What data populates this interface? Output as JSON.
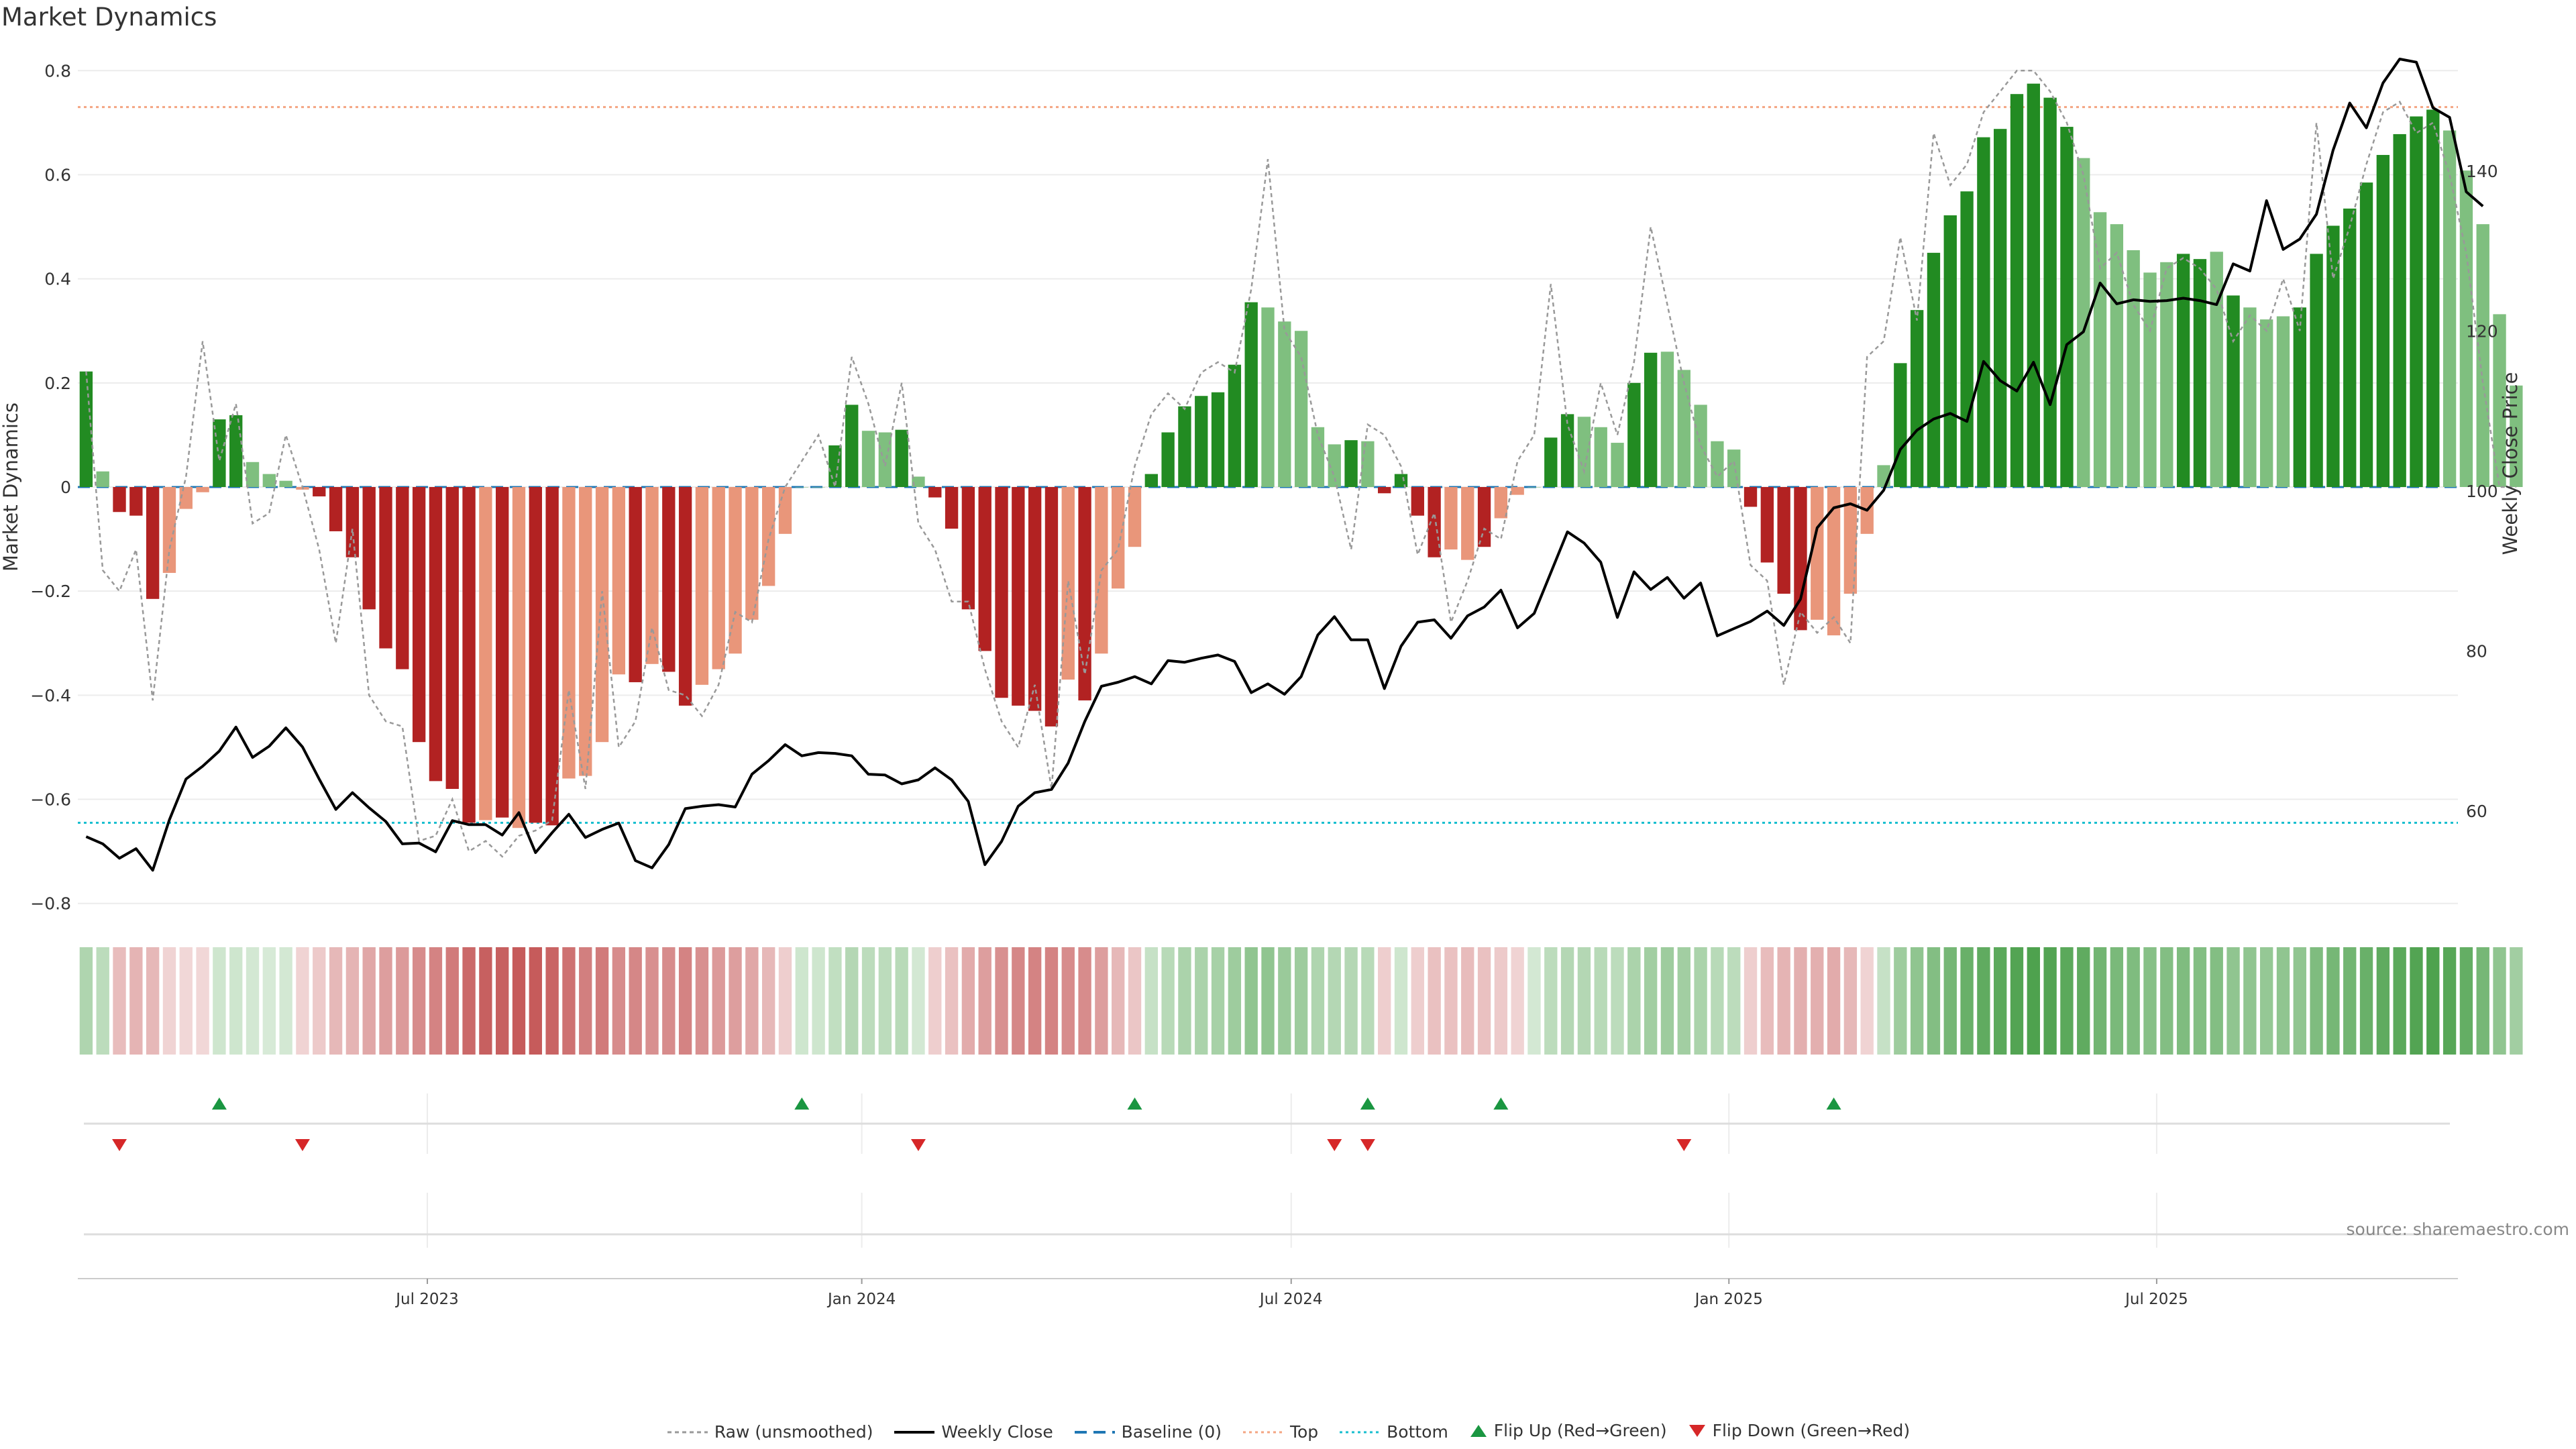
{
  "title": "Market Dynamics",
  "source": "source: sharemaestro.com",
  "colors": {
    "strong_green": "#228B22",
    "light_green": "#7FBF7F",
    "strong_red": "#B22222",
    "light_red": "#E9967A",
    "raw": "#999999",
    "close": "#000000",
    "baseline": "#1F77B4",
    "top": "#F4A582",
    "bottom": "#17BECF",
    "flip_up": "#1A9641",
    "flip_down": "#D62728"
  },
  "chart_data": {
    "type": "bar",
    "title": "Market Dynamics",
    "ylabel": "Market Dynamics",
    "y2label": "Weekly Close Price",
    "ylim": [
      -0.83,
      0.83
    ],
    "y2lim": [
      46.5,
      154.5
    ],
    "yticks": [
      0.8,
      0.6,
      0.4,
      0.2,
      0,
      -0.2,
      -0.4,
      -0.6,
      -0.8
    ],
    "y2ticks": [
      140,
      120,
      100,
      80,
      60
    ],
    "xticks": [
      "Jul 2023",
      "Jan 2024",
      "Jul 2024",
      "Jan 2025",
      "Jul 2025"
    ],
    "xtick_index": [
      21.0,
      47.1,
      72.9,
      99.2,
      124.9
    ],
    "x_count": 143,
    "top_level": 0.73,
    "bottom_level": -0.645,
    "baseline_level": 0,
    "dynamics": [
      0.222,
      0.03,
      -0.048,
      -0.055,
      -0.215,
      -0.165,
      -0.042,
      -0.01,
      0.13,
      0.138,
      0.048,
      0.025,
      0.012,
      -0.005,
      -0.018,
      -0.085,
      -0.135,
      -0.235,
      -0.31,
      -0.35,
      -0.49,
      -0.565,
      -0.58,
      -0.645,
      -0.64,
      -0.635,
      -0.655,
      -0.645,
      -0.65,
      -0.56,
      -0.555,
      -0.49,
      -0.36,
      -0.375,
      -0.34,
      -0.355,
      -0.42,
      -0.38,
      -0.35,
      -0.32,
      -0.255,
      -0.19,
      -0.09,
      0.0,
      0.0,
      0.08,
      0.158,
      0.108,
      0.105,
      0.11,
      0.02,
      -0.02,
      -0.08,
      -0.235,
      -0.315,
      -0.405,
      -0.42,
      -0.43,
      -0.46,
      -0.37,
      -0.41,
      -0.32,
      -0.195,
      -0.115,
      0.025,
      0.105,
      0.155,
      0.175,
      0.182,
      0.235,
      0.355,
      0.345,
      0.318,
      0.3,
      0.115,
      0.082,
      0.09,
      0.088,
      -0.012,
      0.025,
      -0.055,
      -0.135,
      -0.12,
      -0.14,
      -0.115,
      -0.06,
      -0.015,
      0.0,
      0.095,
      0.14,
      0.135,
      0.115,
      0.085,
      0.2,
      0.258,
      0.26,
      0.225,
      0.158,
      0.088,
      0.072,
      -0.038,
      -0.145,
      -0.205,
      -0.275,
      -0.255,
      -0.285,
      -0.205,
      -0.09,
      0.042,
      0.238,
      0.34,
      0.45,
      0.522,
      0.568,
      0.672,
      0.688,
      0.755,
      0.775,
      0.748,
      0.692,
      0.632,
      0.528,
      0.505,
      0.455,
      0.412,
      0.432,
      0.448,
      0.438,
      0.452,
      0.368,
      0.345,
      0.322,
      0.328,
      0.345,
      0.448,
      0.502,
      0.535,
      0.585,
      0.638,
      0.678,
      0.712,
      0.725,
      0.685,
      0.608,
      0.505,
      0.332,
      0.195
    ],
    "strength": [
      "s",
      "l",
      "s",
      "s",
      "s",
      "l",
      "l",
      "l",
      "s",
      "s",
      "l",
      "l",
      "l",
      "l",
      "s",
      "s",
      "s",
      "s",
      "s",
      "s",
      "s",
      "s",
      "s",
      "s",
      "l",
      "s",
      "l",
      "s",
      "s",
      "l",
      "l",
      "l",
      "l",
      "s",
      "l",
      "s",
      "s",
      "l",
      "l",
      "l",
      "l",
      "l",
      "l",
      "l",
      "l",
      "s",
      "s",
      "l",
      "l",
      "s",
      "l",
      "s",
      "s",
      "s",
      "s",
      "s",
      "s",
      "s",
      "s",
      "l",
      "s",
      "l",
      "l",
      "l",
      "s",
      "s",
      "s",
      "s",
      "s",
      "s",
      "s",
      "l",
      "l",
      "l",
      "l",
      "l",
      "s",
      "l",
      "s",
      "s",
      "s",
      "s",
      "l",
      "l",
      "s",
      "l",
      "l",
      "l",
      "s",
      "s",
      "l",
      "l",
      "l",
      "s",
      "s",
      "l",
      "l",
      "l",
      "l",
      "l",
      "s",
      "s",
      "s",
      "s",
      "l",
      "l",
      "l",
      "l",
      "l",
      "s",
      "s",
      "s",
      "s",
      "s",
      "s",
      "s",
      "s",
      "s",
      "s",
      "s",
      "l",
      "l",
      "l",
      "l",
      "l",
      "l",
      "s",
      "s",
      "l",
      "s",
      "l",
      "l",
      "l",
      "s",
      "s",
      "s",
      "s",
      "s",
      "s",
      "s",
      "s",
      "s",
      "l",
      "l",
      "l",
      "l"
    ],
    "raw": [
      0.222,
      -0.16,
      -0.2,
      -0.12,
      -0.41,
      -0.12,
      0.02,
      0.28,
      0.05,
      0.16,
      -0.07,
      -0.05,
      0.1,
      0.0,
      -0.12,
      -0.3,
      -0.08,
      -0.4,
      -0.45,
      -0.46,
      -0.68,
      -0.67,
      -0.6,
      -0.7,
      -0.68,
      -0.71,
      -0.67,
      -0.66,
      -0.64,
      -0.39,
      -0.58,
      -0.2,
      -0.5,
      -0.45,
      -0.27,
      -0.39,
      -0.4,
      -0.44,
      -0.38,
      -0.24,
      -0.26,
      -0.1,
      0.0,
      0.05,
      0.1,
      0.0,
      0.25,
      0.16,
      0.04,
      0.2,
      -0.07,
      -0.12,
      -0.22,
      -0.22,
      -0.35,
      -0.45,
      -0.5,
      -0.38,
      -0.58,
      -0.18,
      -0.36,
      -0.16,
      -0.12,
      0.04,
      0.14,
      0.18,
      0.15,
      0.22,
      0.24,
      0.22,
      0.38,
      0.63,
      0.3,
      0.25,
      0.1,
      0.02,
      -0.12,
      0.12,
      0.1,
      0.04,
      -0.13,
      -0.05,
      -0.26,
      -0.18,
      -0.08,
      -0.1,
      0.05,
      0.1,
      0.39,
      0.12,
      0.03,
      0.2,
      0.1,
      0.24,
      0.5,
      0.35,
      0.2,
      0.08,
      0.02,
      0.05,
      -0.15,
      -0.18,
      -0.38,
      -0.24,
      -0.28,
      -0.25,
      -0.3,
      0.25,
      0.28,
      0.48,
      0.32,
      0.68,
      0.58,
      0.62,
      0.72,
      0.76,
      0.8,
      0.8,
      0.76,
      0.7,
      0.6,
      0.42,
      0.45,
      0.35,
      0.3,
      0.42,
      0.44,
      0.42,
      0.38,
      0.28,
      0.33,
      0.3,
      0.4,
      0.3,
      0.7,
      0.4,
      0.5,
      0.62,
      0.72,
      0.74,
      0.68,
      0.7,
      0.6,
      0.45,
      0.2,
      0.0,
      0.0
    ],
    "weekly_close": [
      56.8,
      55.9,
      54.1,
      55.3,
      52.6,
      58.9,
      64.0,
      65.6,
      67.5,
      70.5,
      66.7,
      68.1,
      70.4,
      68.0,
      64.0,
      60.2,
      62.3,
      60.4,
      58.7,
      55.9,
      56.0,
      54.9,
      58.8,
      58.3,
      58.3,
      57.0,
      59.8,
      54.8,
      57.3,
      59.6,
      56.7,
      57.7,
      58.5,
      53.8,
      52.9,
      55.8,
      60.3,
      60.6,
      60.8,
      60.5,
      64.6,
      66.3,
      68.3,
      66.9,
      67.3,
      67.2,
      66.9,
      64.6,
      64.5,
      63.4,
      63.9,
      65.4,
      63.9,
      61.2,
      53.3,
      56.2,
      60.6,
      62.3,
      62.7,
      66.0,
      71.2,
      75.6,
      76.1,
      76.8,
      75.9,
      78.8,
      78.6,
      79.1,
      79.5,
      78.7,
      74.8,
      75.9,
      74.6,
      76.8,
      82.0,
      84.3,
      81.4,
      81.4,
      75.3,
      80.6,
      83.6,
      83.9,
      81.6,
      84.4,
      85.5,
      87.6,
      82.9,
      84.7,
      89.8,
      94.9,
      93.5,
      91.1,
      84.2,
      89.9,
      87.7,
      89.2,
      86.6,
      88.5,
      81.9,
      82.8,
      83.7,
      85.0,
      83.2,
      86.5,
      95.4,
      97.9,
      98.4,
      97.6,
      100.1,
      105.2,
      107.6,
      109.0,
      109.7,
      108.7,
      116.2,
      113.8,
      112.5,
      116.1,
      110.8,
      118.3,
      119.9,
      126.0,
      123.4,
      123.9,
      123.7,
      123.8,
      124.1,
      123.8,
      123.3,
      128.4,
      127.5,
      136.3,
      130.2,
      131.5,
      134.6,
      142.6,
      148.5,
      145.4,
      151.0,
      154.0,
      153.6,
      147.9,
      146.7,
      137.4,
      135.6
    ],
    "thermo": [
      0.36,
      0.3,
      0.3,
      0.34,
      0.32,
      0.2,
      0.18,
      0.18,
      0.22,
      0.22,
      0.2,
      0.18,
      0.2,
      0.2,
      0.24,
      0.32,
      0.34,
      0.4,
      0.44,
      0.46,
      0.52,
      0.56,
      0.6,
      0.68,
      0.72,
      0.72,
      0.74,
      0.74,
      0.7,
      0.64,
      0.58,
      0.6,
      0.52,
      0.54,
      0.5,
      0.52,
      0.56,
      0.5,
      0.46,
      0.44,
      0.4,
      0.32,
      0.22,
      0.22,
      0.22,
      0.28,
      0.34,
      0.3,
      0.3,
      0.32,
      0.2,
      0.22,
      0.28,
      0.38,
      0.44,
      0.5,
      0.54,
      0.56,
      0.56,
      0.52,
      0.52,
      0.44,
      0.32,
      0.26,
      0.26,
      0.32,
      0.38,
      0.38,
      0.4,
      0.44,
      0.5,
      0.5,
      0.46,
      0.44,
      0.36,
      0.34,
      0.34,
      0.32,
      0.22,
      0.22,
      0.22,
      0.28,
      0.28,
      0.3,
      0.28,
      0.24,
      0.2,
      0.2,
      0.3,
      0.34,
      0.34,
      0.32,
      0.3,
      0.38,
      0.42,
      0.44,
      0.42,
      0.38,
      0.32,
      0.3,
      0.22,
      0.3,
      0.34,
      0.36,
      0.36,
      0.38,
      0.32,
      0.2,
      0.26,
      0.44,
      0.5,
      0.56,
      0.62,
      0.68,
      0.72,
      0.74,
      0.78,
      0.8,
      0.78,
      0.74,
      0.72,
      0.64,
      0.6,
      0.58,
      0.54,
      0.56,
      0.58,
      0.56,
      0.56,
      0.5,
      0.5,
      0.48,
      0.5,
      0.5,
      0.58,
      0.62,
      0.64,
      0.68,
      0.72,
      0.74,
      0.78,
      0.8,
      0.76,
      0.7,
      0.62,
      0.5,
      0.42
    ],
    "flip_up": [
      8,
      43,
      63,
      77,
      85,
      105
    ],
    "flip_down": [
      2,
      13,
      50,
      75,
      77,
      96
    ],
    "legend": [
      "Raw (unsmoothed)",
      "Weekly Close",
      "Baseline (0)",
      "Top",
      "Bottom",
      "Flip Up (Red→Green)",
      "Flip Down (Green→Red)"
    ]
  }
}
